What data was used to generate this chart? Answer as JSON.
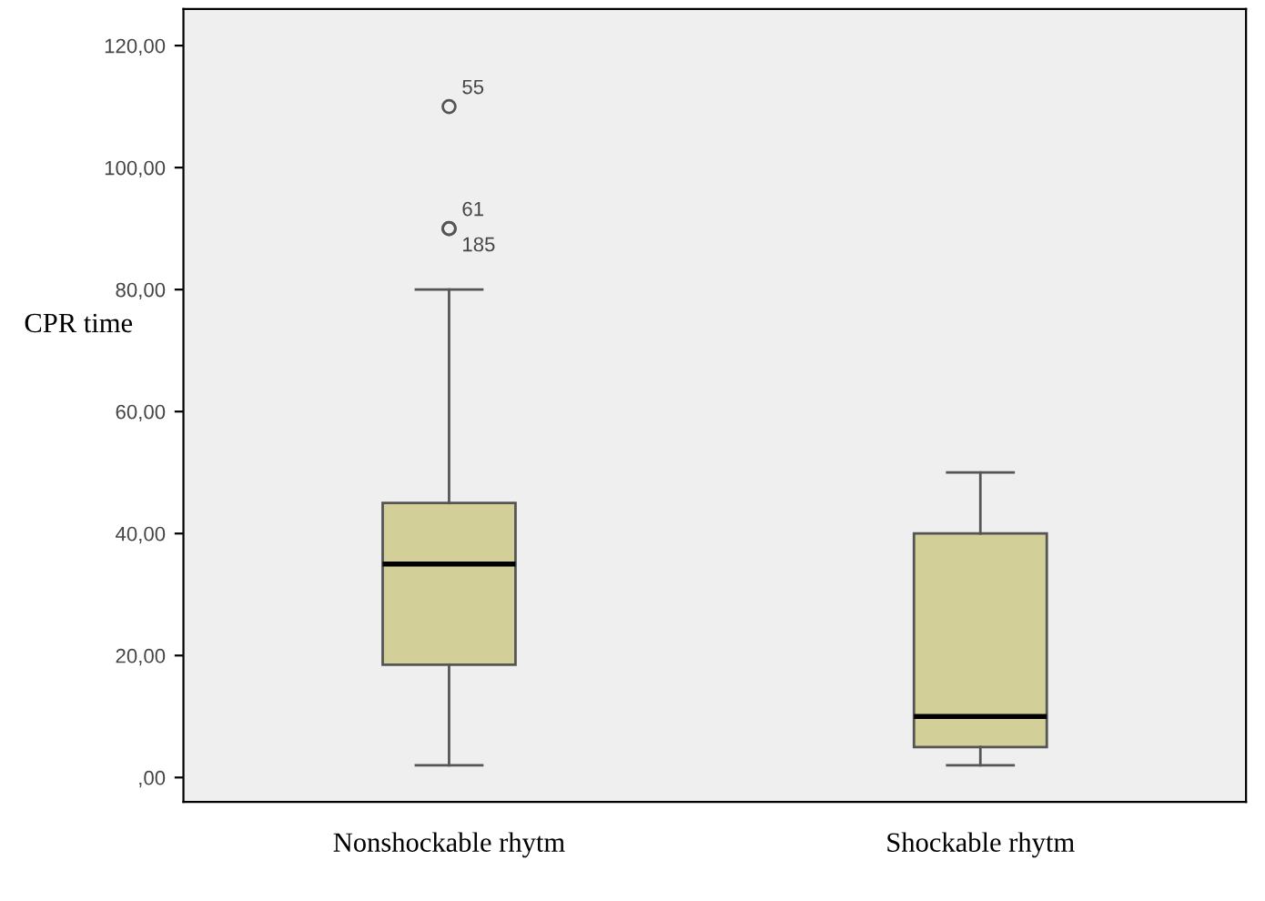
{
  "chart_data": {
    "type": "box",
    "ylabel": "CPR time",
    "categories": [
      "Nonshockable rhytm",
      "Shockable rhytm"
    ],
    "boxes": [
      {
        "low": 2,
        "q1": 18.5,
        "median": 35,
        "q3": 45,
        "high": 80,
        "outliers": [
          110,
          90,
          90
        ]
      },
      {
        "low": 2,
        "q1": 5,
        "median": 10,
        "q3": 40,
        "high": 50
      }
    ],
    "color": "#d3cf98",
    "ylim": [
      -4,
      126
    ],
    "yticks": [
      {
        "value": 0,
        "label": ",00"
      },
      {
        "value": 20,
        "label": "20,00"
      },
      {
        "value": 40,
        "label": "40,00"
      },
      {
        "value": 60,
        "label": "60,00"
      },
      {
        "value": 80,
        "label": "80,00"
      },
      {
        "value": 100,
        "label": "100,00"
      },
      {
        "value": 120,
        "label": "120,00"
      }
    ],
    "annotations": [
      "55",
      "61",
      "185"
    ],
    "grid": false
  }
}
